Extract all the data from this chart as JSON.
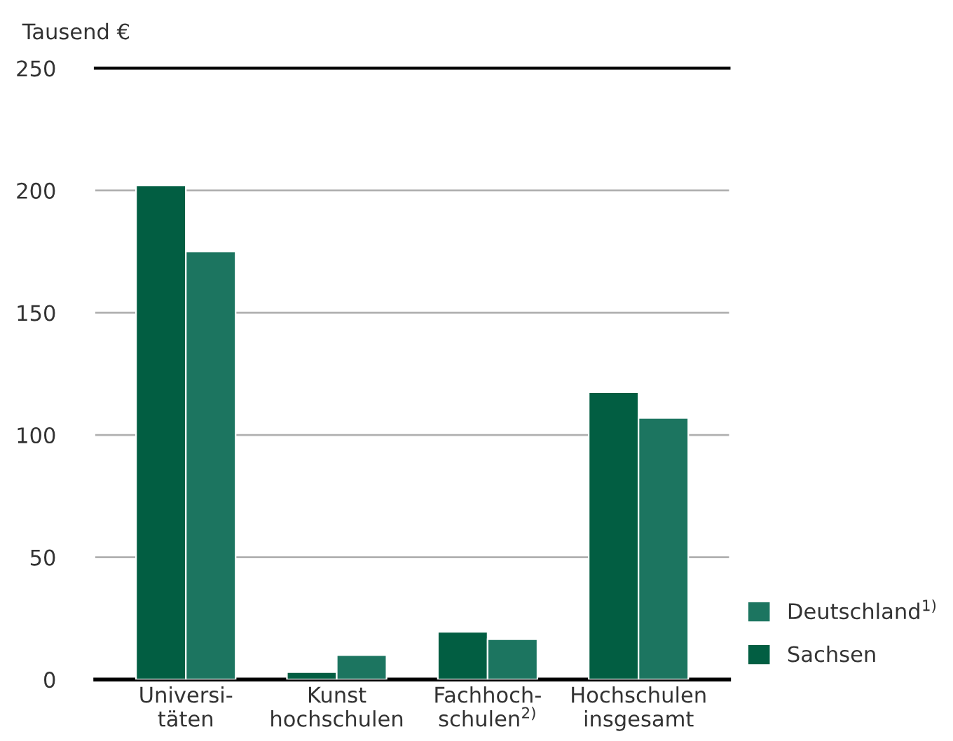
{
  "chart_data": {
    "type": "bar",
    "ylabel": "Tausend €",
    "categories": [
      "Universi-\ntäten",
      "Kunst\nhochschulen",
      "Fachhoch-\nschulen$^{2)}$",
      "Hochschulen\ninsgesamt"
    ],
    "series": [
      {
        "name": "Sachsen",
        "color": "#025e42",
        "values": [
          202,
          3,
          19.5,
          117.5
        ]
      },
      {
        "name": "Deutschland$^{1)}$",
        "color": "#1c7560",
        "values": [
          175,
          10,
          16.5,
          107
        ]
      }
    ],
    "ylim": [
      0,
      250
    ],
    "yticks": [
      0,
      50,
      100,
      150,
      200,
      250
    ],
    "grid": "y",
    "legend": "bottom right"
  }
}
